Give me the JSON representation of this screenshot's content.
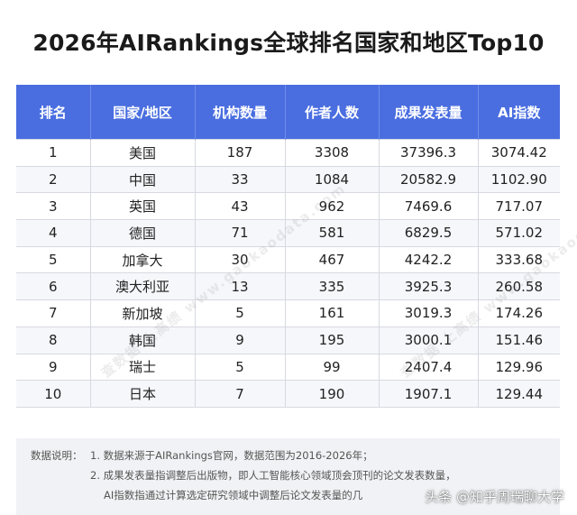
{
  "title": "2026年AIRankings全球排名国家和地区Top10",
  "table": {
    "headers": [
      "排名",
      "国家/地区",
      "机构数量",
      "作者人数",
      "成果发表量",
      "AI指数"
    ],
    "rows": [
      [
        "1",
        "美国",
        "187",
        "3308",
        "37396.3",
        "3074.42"
      ],
      [
        "2",
        "中国",
        "33",
        "1084",
        "20582.9",
        "1102.90"
      ],
      [
        "3",
        "英国",
        "43",
        "962",
        "7469.6",
        "717.07"
      ],
      [
        "4",
        "德国",
        "71",
        "581",
        "6829.5",
        "571.02"
      ],
      [
        "5",
        "加拿大",
        "30",
        "467",
        "4242.2",
        "333.68"
      ],
      [
        "6",
        "澳大利亚",
        "13",
        "335",
        "3925.3",
        "260.58"
      ],
      [
        "7",
        "新加坡",
        "5",
        "161",
        "3019.3",
        "174.26"
      ],
      [
        "8",
        "韩国",
        "9",
        "195",
        "3000.1",
        "151.46"
      ],
      [
        "9",
        "瑞士",
        "5",
        "99",
        "2407.4",
        "129.96"
      ],
      [
        "10",
        "日本",
        "7",
        "190",
        "1907.1",
        "129.44"
      ]
    ],
    "header_color": "#4a6ee0"
  },
  "notes": {
    "label": "数据说明：",
    "line1": "1. 数据来源于AIRankings官网，数据范围为2016-2026年；",
    "line2": "2. 成果发表量指调整后出版物，即人工智能核心领域顶会顶刊的论文发表数量，",
    "line3": "AI指数指通过计算选定研究领域中调整后论文发表量的几"
  },
  "watermark": "查数据 上高绩 www.gaokaodata.com",
  "overlay": "头条 @知乎周瑞聊大学"
}
